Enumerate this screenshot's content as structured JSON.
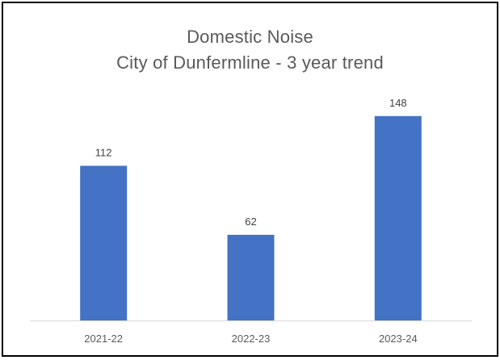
{
  "chart_data": {
    "type": "bar",
    "title": [
      "Domestic Noise",
      "City of Dunfermline - 3 year trend"
    ],
    "categories": [
      "2021-22",
      "2022-23",
      "2023-24"
    ],
    "values": [
      112,
      62,
      148
    ],
    "data_labels": [
      "112",
      "62",
      "148"
    ],
    "xlabel": "",
    "ylabel": "",
    "ylim": [
      0,
      160
    ],
    "grid": false,
    "legend": "none",
    "colors": {
      "bar": "#4472C4",
      "axis": "#D9D9D9",
      "frame": "#000000"
    }
  }
}
